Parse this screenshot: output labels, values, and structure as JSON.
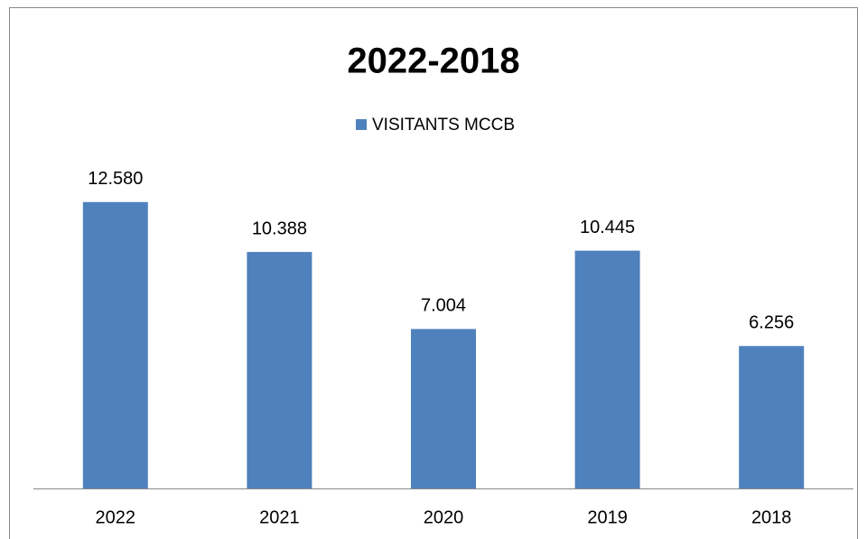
{
  "chart_data": {
    "type": "bar",
    "title": "2022-2018",
    "categories": [
      "2022",
      "2021",
      "2020",
      "2019",
      "2018"
    ],
    "series": [
      {
        "name": "VISITANTS MCCB",
        "color": "#4f81bd",
        "values": [
          12580,
          10388,
          7004,
          10445,
          6256
        ],
        "value_labels": [
          "12.580",
          "10.388",
          "7.004",
          "10.445",
          "6.256"
        ]
      }
    ],
    "ylim": [
      0,
      14000
    ],
    "legend": "top"
  }
}
